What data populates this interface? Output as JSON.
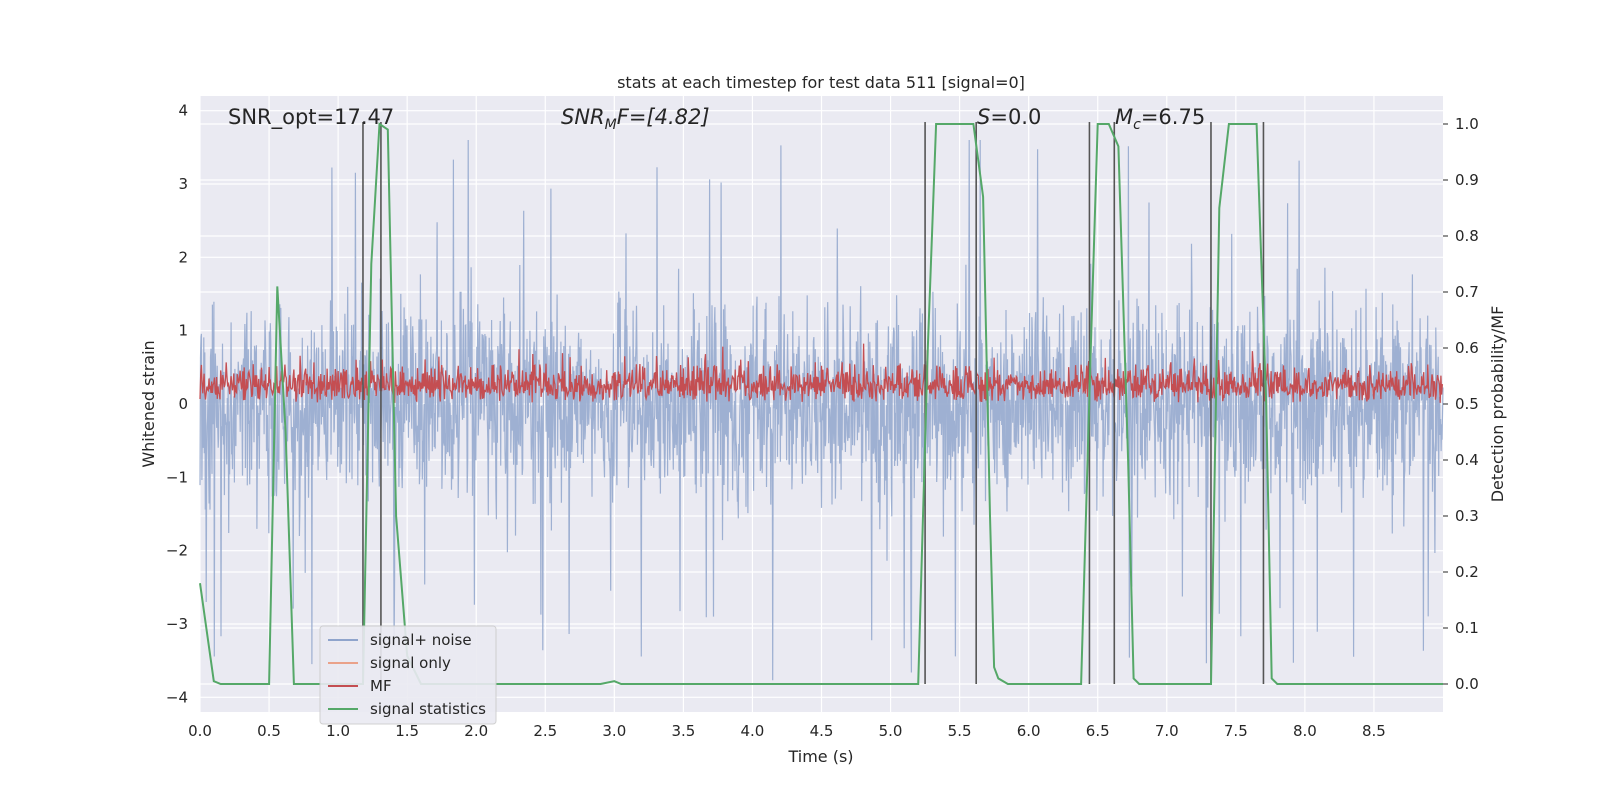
{
  "chart_data": {
    "type": "line",
    "title": "stats at each timestep for test data 511 [signal=0]",
    "xlabel": "Time (s)",
    "ylabel_left": "Whitened strain",
    "ylabel_right": "Detection probability/MF",
    "xlim": [
      0,
      9
    ],
    "ylim_left": [
      -4.2,
      4.2
    ],
    "ylim_right": [
      -0.05,
      1.05
    ],
    "x_ticks": [
      "0.0",
      "0.5",
      "1.0",
      "1.5",
      "2.0",
      "2.5",
      "3.0",
      "3.5",
      "4.0",
      "4.5",
      "5.0",
      "5.5",
      "6.0",
      "6.5",
      "7.0",
      "7.5",
      "8.0",
      "8.5"
    ],
    "y_left_ticks": [
      "4",
      "3",
      "2",
      "1",
      "0",
      "−1",
      "−2",
      "−3",
      "−4"
    ],
    "y_right_ticks": [
      "1.0",
      "0.9",
      "0.8",
      "0.7",
      "0.6",
      "0.5",
      "0.4",
      "0.3",
      "0.2",
      "0.1",
      "0.0"
    ],
    "grid": true,
    "annotations": {
      "snr_opt": "SNR_opt=17.47",
      "snr_mf_base": "SNR",
      "snr_mf_sub": "M",
      "snr_mf_rest": "F=[4.82]",
      "s_label": "S",
      "s_rest": "=0.0",
      "mc_base": "M",
      "mc_sub": "c",
      "mc_rest": "=6.75"
    },
    "legend": {
      "placement": "lower-left",
      "entries": [
        {
          "label": "signal+ noise",
          "color": "#8fa4cc"
        },
        {
          "label": "signal only",
          "color": "#eaa28a"
        },
        {
          "label": "MF",
          "color": "#c44e52"
        },
        {
          "label": "signal statistics",
          "color": "#55a868"
        }
      ]
    },
    "series": [
      {
        "name": "signal+ noise",
        "color": "#9aadd0",
        "envelope_typical": 2.0,
        "peak_max": 3.6,
        "trough_min": -4.0
      },
      {
        "name": "MF",
        "color": "#c44e52",
        "axis": "right",
        "baseline": 0.5,
        "band": [
          0.5,
          0.6
        ]
      },
      {
        "name": "signal statistics",
        "color": "#55a868",
        "axis": "right",
        "x": [
          0.0,
          0.1,
          0.15,
          0.5,
          0.56,
          0.62,
          0.68,
          1.18,
          1.24,
          1.3,
          1.36,
          1.42,
          1.5,
          1.6,
          2.9,
          3.0,
          3.05,
          5.2,
          5.27,
          5.33,
          5.6,
          5.67,
          5.72,
          5.75,
          5.78,
          5.85,
          6.38,
          6.45,
          6.5,
          6.58,
          6.65,
          6.72,
          6.76,
          6.8,
          7.32,
          7.38,
          7.45,
          7.65,
          7.72,
          7.76,
          7.8,
          9.0
        ],
        "y": [
          0.18,
          0.005,
          0.0,
          0.0,
          0.71,
          0.45,
          0.0,
          0.0,
          0.75,
          1.0,
          0.99,
          0.3,
          0.05,
          0.0,
          0.0,
          0.005,
          0.0,
          0.0,
          0.6,
          1.0,
          1.0,
          0.87,
          0.3,
          0.03,
          0.01,
          0.0,
          0.0,
          0.6,
          1.0,
          1.0,
          0.96,
          0.4,
          0.01,
          0.0,
          0.0,
          0.85,
          1.0,
          1.0,
          0.5,
          0.01,
          0.0,
          0.0
        ]
      }
    ],
    "vertical_markers_x": [
      1.18,
      1.31,
      5.25,
      5.62,
      6.44,
      6.62,
      7.32,
      7.7
    ]
  }
}
